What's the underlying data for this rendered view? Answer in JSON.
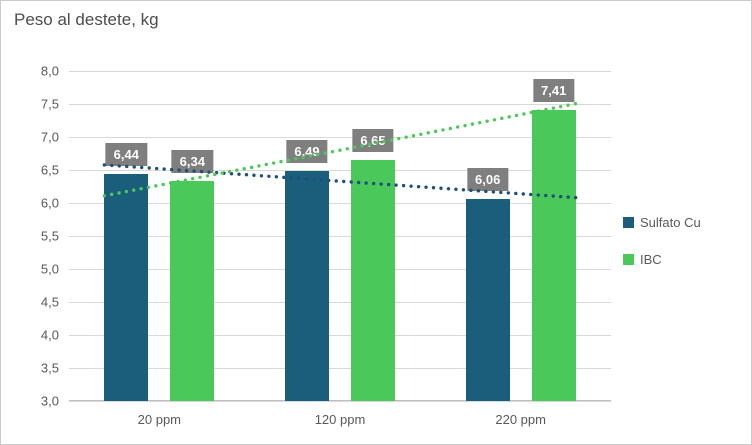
{
  "title": "Peso al destete, kg",
  "chart_data": {
    "type": "bar",
    "title": "Peso al destete, kg",
    "categories": [
      "20 ppm",
      "120 ppm",
      "220 ppm"
    ],
    "series": [
      {
        "name": "Sulfato Cu",
        "color": "#1B5E7B",
        "values": [
          6.44,
          6.49,
          6.06
        ],
        "labels": [
          "6,44",
          "6,49",
          "6,06"
        ]
      },
      {
        "name": "IBC",
        "color": "#4AC95A",
        "values": [
          6.34,
          6.65,
          7.41
        ],
        "labels": [
          "6,34",
          "6,65",
          "7,41"
        ]
      }
    ],
    "trendlines": [
      {
        "series": "Sulfato Cu",
        "style": "dotted",
        "color": "#1F4E79",
        "values": [
          6.52,
          6.33,
          6.14
        ]
      },
      {
        "series": "IBC",
        "style": "dotted",
        "color": "#4AC95A",
        "values": [
          6.27,
          6.8,
          7.34
        ]
      }
    ],
    "ylim": [
      3.0,
      8.0
    ],
    "ytick_step": 0.5,
    "yticks": [
      "8,0",
      "7,5",
      "7,0",
      "6,5",
      "6,0",
      "5,5",
      "5,0",
      "4,5",
      "4,0",
      "3,5",
      "3,0"
    ],
    "xlabel": "",
    "ylabel": "",
    "grid": true,
    "legend_position": "right",
    "value_label_bg": "#7F7F7F",
    "value_label_color": "#FFFFFF"
  },
  "legend": {
    "items": [
      {
        "label": "Sulfato Cu",
        "color": "#1B5E7B"
      },
      {
        "label": "IBC",
        "color": "#4AC95A"
      }
    ]
  },
  "colors": {
    "axis_text": "#595959",
    "title_text": "#4D4D4D",
    "gridline": "#D9D9D9",
    "axis_line": "#BFBFBF",
    "border": "#CBCBCB",
    "background": "#FFFFFF"
  }
}
